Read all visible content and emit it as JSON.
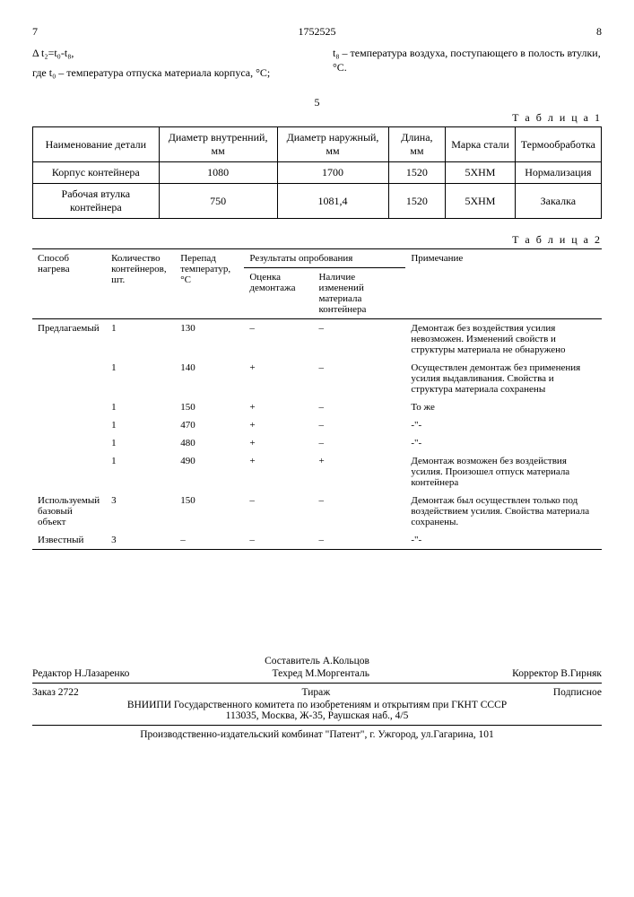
{
  "page_left_no": "7",
  "patent_no": "1752525",
  "page_right_no": "8",
  "formula_line": "Δ t₂=t₀-t₈,",
  "left_desc": "где t₀ – температура отпуска материала корпуса, °C;",
  "right_desc": "t₈ – температура воздуха, поступающего в полость втулки, °C.",
  "center_5": "5",
  "table1_caption": "Т а б л и ц а 1",
  "t1": {
    "headers": [
      "Наименование детали",
      "Диаметр внутренний, мм",
      "Диаметр наружный, мм",
      "Длина, мм",
      "Марка стали",
      "Термообработка"
    ],
    "rows": [
      [
        "Корпус контейнера",
        "1080",
        "1700",
        "1520",
        "5ХНМ",
        "Нормализация"
      ],
      [
        "Рабочая втулка контейнера",
        "750",
        "1081,4",
        "1520",
        "5ХНМ",
        "Закалка"
      ]
    ]
  },
  "table2_caption": "Т а б л и ц а 2",
  "t2": {
    "h_method": "Способ нагрева",
    "h_qty": "Количество контейнеров, шт.",
    "h_dt": "Перепад температур, °C",
    "h_res_group": "Результаты опробования",
    "h_res1": "Оценка демонтажа",
    "h_res2": "Наличие изменений материала контейнера",
    "h_note": "Примечание",
    "sections": [
      {
        "name": "Предлагаемый",
        "rows": [
          {
            "q": "1",
            "dt": "130",
            "r1": "–",
            "r2": "–",
            "note": "Демонтаж без воздействия усилия невозможен. Изменений свойств и структуры материала не обнаружено"
          },
          {
            "q": "1",
            "dt": "140",
            "r1": "+",
            "r2": "–",
            "note": "Осуществлен демонтаж без применения усилия выдавливания. Свойства и структура материала сохранены"
          },
          {
            "q": "1",
            "dt": "150",
            "r1": "+",
            "r2": "–",
            "note": "То же"
          },
          {
            "q": "1",
            "dt": "470",
            "r1": "+",
            "r2": "–",
            "note": "-\"-"
          },
          {
            "q": "1",
            "dt": "480",
            "r1": "+",
            "r2": "–",
            "note": "-\"-"
          },
          {
            "q": "1",
            "dt": "490",
            "r1": "+",
            "r2": "+",
            "note": "Демонтаж возможен без воздействия усилия. Произошел отпуск материала контейнера"
          }
        ]
      },
      {
        "name": "Используемый базовый объект",
        "rows": [
          {
            "q": "3",
            "dt": "150",
            "r1": "–",
            "r2": "–",
            "note": "Демонтаж был осуществлен только под воздействием усилия. Свойства материала сохранены."
          }
        ]
      },
      {
        "name": "Известный",
        "rows": [
          {
            "q": "3",
            "dt": "–",
            "r1": "–",
            "r2": "–",
            "note": "-\"-"
          }
        ]
      }
    ]
  },
  "footer": {
    "editor_lbl": "Редактор Н.Лазаренко",
    "compiler": "Составитель А.Кольцов",
    "techred": "Техред М.Моргенталь",
    "corrector": "Корректор  В.Гирняк",
    "order": "Заказ 2722",
    "tirage": "Тираж",
    "subscr": "Подписное",
    "org": "ВНИИПИ Государственного комитета по изобретениям и открытиям при ГКНТ СССР",
    "addr": "113035, Москва, Ж-35, Раушская наб., 4/5",
    "print": "Производственно-издательский комбинат \"Патент\", г. Ужгород, ул.Гагарина, 101"
  }
}
